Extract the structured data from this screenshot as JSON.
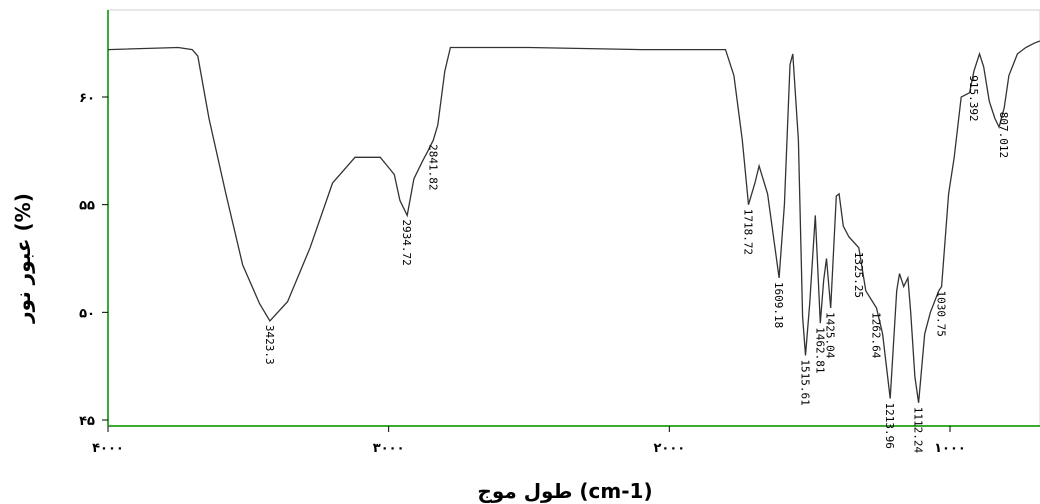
{
  "chart_data": {
    "type": "line",
    "title": "",
    "xlabel": "طول موج (cm-1)",
    "ylabel": "عبور نور (%)",
    "xlim": [
      4000,
      900
    ],
    "ylim": [
      45,
      64
    ],
    "x_reversed": true,
    "grid": false,
    "colors": {
      "axis": "#3aaa35",
      "line": "#333333"
    },
    "x_ticks": [
      {
        "value": 4000,
        "label": "۴۰۰۰"
      },
      {
        "value": 3000,
        "label": "۳۰۰۰"
      },
      {
        "value": 2000,
        "label": "۲۰۰۰"
      },
      {
        "value": 1000,
        "label": "۱۰۰۰"
      }
    ],
    "y_ticks": [
      {
        "value": 45,
        "label": "۴۵"
      },
      {
        "value": 50,
        "label": "۵۰"
      },
      {
        "value": 55,
        "label": "۵۵"
      },
      {
        "value": 60,
        "label": "۶۰"
      }
    ],
    "series": [
      {
        "x": [
          4000,
          3750,
          3700,
          3680,
          3640,
          3580,
          3520,
          3460,
          3423,
          3360,
          3280,
          3200,
          3120,
          3030,
          2980,
          2960,
          2934,
          2910,
          2880,
          2860,
          2841,
          2825,
          2800,
          2780,
          2500,
          2100,
          1800,
          1770,
          1740,
          1718,
          1695,
          1680,
          1650,
          1609,
          1590,
          1570,
          1560,
          1540,
          1525,
          1515,
          1500,
          1480,
          1462,
          1450,
          1440,
          1425,
          1405,
          1395,
          1380,
          1360,
          1325,
          1300,
          1262,
          1240,
          1213,
          1190,
          1180,
          1165,
          1150,
          1140,
          1125,
          1112,
          1090,
          1070,
          1040,
          1030,
          1005,
          985,
          960,
          930,
          915,
          895,
          880,
          860,
          840,
          825,
          807,
          790,
          760,
          730,
          700,
          680
        ],
        "y": [
          62.2,
          62.3,
          62.2,
          61.9,
          59.0,
          55.5,
          52.2,
          50.4,
          49.6,
          50.5,
          53.0,
          56.0,
          57.2,
          57.2,
          56.4,
          55.2,
          54.5,
          56.2,
          57.0,
          57.5,
          58.0,
          58.7,
          61.2,
          62.3,
          62.3,
          62.2,
          62.2,
          61.0,
          58.0,
          55.0,
          56.0,
          56.8,
          55.5,
          51.6,
          55.0,
          61.5,
          62.0,
          58.0,
          49.8,
          48.0,
          50.4,
          54.5,
          49.5,
          51.5,
          52.5,
          50.2,
          55.4,
          55.5,
          54.0,
          53.5,
          53.0,
          51.0,
          50.2,
          49.0,
          46.0,
          51.0,
          51.8,
          51.2,
          51.6,
          50.0,
          47.0,
          45.8,
          49.0,
          50.0,
          51.0,
          51.2,
          55.5,
          57.2,
          60.0,
          60.2,
          61.2,
          62.0,
          61.4,
          59.8,
          59.0,
          58.6,
          59.5,
          61.0,
          62.0,
          62.3,
          62.5,
          62.6
        ]
      }
    ],
    "peak_labels": [
      {
        "x": 3423,
        "y": 49.6,
        "label": "3423.3"
      },
      {
        "x": 2934,
        "y": 54.5,
        "label": "2934.72"
      },
      {
        "x": 2841,
        "y": 58.0,
        "label": "2841.82"
      },
      {
        "x": 1718,
        "y": 55.0,
        "label": "1718.72"
      },
      {
        "x": 1609,
        "y": 51.6,
        "label": "1609.18"
      },
      {
        "x": 1515,
        "y": 48.0,
        "label": "1515.61"
      },
      {
        "x": 1462,
        "y": 49.5,
        "label": "1462.81"
      },
      {
        "x": 1425,
        "y": 50.2,
        "label": "1425.04"
      },
      {
        "x": 1325,
        "y": 53.0,
        "label": "1325.25"
      },
      {
        "x": 1262,
        "y": 50.2,
        "label": "1262.64"
      },
      {
        "x": 1213,
        "y": 46.0,
        "label": "1213.96"
      },
      {
        "x": 1112,
        "y": 45.8,
        "label": "1112.24"
      },
      {
        "x": 1030,
        "y": 51.2,
        "label": "1030.75"
      },
      {
        "x": 915,
        "y": 61.2,
        "label": "915.392"
      },
      {
        "x": 807,
        "y": 59.5,
        "label": "807.012"
      }
    ]
  }
}
